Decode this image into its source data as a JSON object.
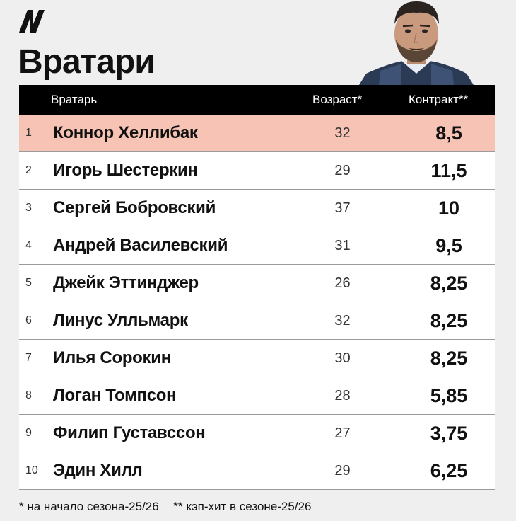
{
  "title": "Вратари",
  "header": {
    "name": "Вратарь",
    "age": "Возраст*",
    "contract": "Контракт**"
  },
  "rows": [
    {
      "rank": "1",
      "name": "Коннор Хеллибак",
      "age": "32",
      "contract": "8,5"
    },
    {
      "rank": "2",
      "name": "Игорь Шестеркин",
      "age": "29",
      "contract": "11,5"
    },
    {
      "rank": "3",
      "name": "Сергей Бобровский",
      "age": "37",
      "contract": "10"
    },
    {
      "rank": "4",
      "name": "Андрей Василевский",
      "age": "31",
      "contract": "9,5"
    },
    {
      "rank": "5",
      "name": "Джейк Эттинджер",
      "age": "26",
      "contract": "8,25"
    },
    {
      "rank": "6",
      "name": "Линус Улльмарк",
      "age": "32",
      "contract": "8,25"
    },
    {
      "rank": "7",
      "name": "Илья Сорокин",
      "age": "30",
      "contract": "8,25"
    },
    {
      "rank": "8",
      "name": "Логан Томпсон",
      "age": "28",
      "contract": "5,85"
    },
    {
      "rank": "9",
      "name": "Филип Густавссон",
      "age": "27",
      "contract": "3,75"
    },
    {
      "rank": "10",
      "name": "Эдин Хилл",
      "age": "29",
      "contract": "6,25"
    }
  ],
  "footnotes": {
    "age_note": "* на начало сезона-25/26",
    "contract_note": "** кэп-хит в сезоне-25/26"
  },
  "colors": {
    "highlight_row": "#f6c3b5",
    "header_bg": "#000000",
    "page_bg": "#efefef"
  }
}
